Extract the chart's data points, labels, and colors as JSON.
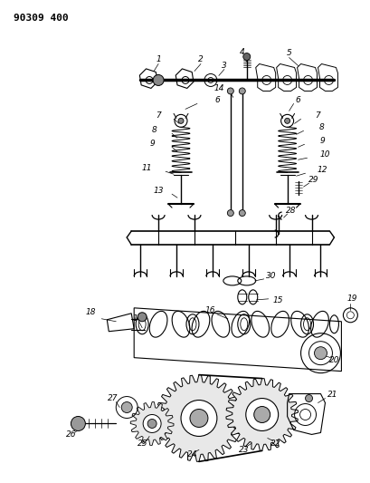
{
  "title": "90309 400",
  "bg": "#ffffff",
  "fw": 4.09,
  "fh": 5.33,
  "dpi": 100
}
